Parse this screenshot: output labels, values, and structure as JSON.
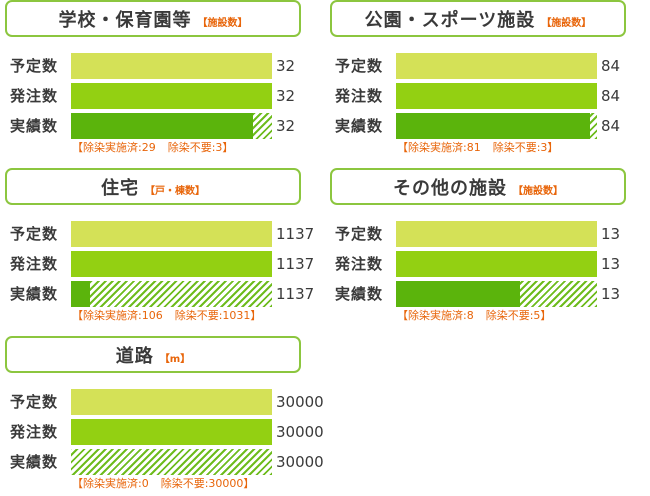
{
  "row_labels": [
    "予定数",
    "発注数",
    "実績数"
  ],
  "colors": {
    "plan": "#d4e157",
    "order": "#93d012",
    "done": "#5bb40c",
    "hatch": "#6ebc1e",
    "frame": "#8cc63f",
    "note": "#e8650a"
  },
  "note_open": "【",
  "note_close": "】",
  "note_label_done": "除染実施済:",
  "note_label_unneeded": "除染不要:",
  "chart_data": [
    {
      "type": "bar",
      "title": "学校・保育園等",
      "unit": "【施設数】",
      "categories": [
        "予定数",
        "発注数",
        "実績数"
      ],
      "values": [
        32,
        32,
        32
      ],
      "breakdown": {
        "done": 29,
        "unneeded": 3
      },
      "value_labels": [
        "32",
        "32",
        "32"
      ]
    },
    {
      "type": "bar",
      "title": "公園・スポーツ施設",
      "unit": "【施設数】",
      "categories": [
        "予定数",
        "発注数",
        "実績数"
      ],
      "values": [
        84,
        84,
        84
      ],
      "breakdown": {
        "done": 81,
        "unneeded": 3
      },
      "value_labels": [
        "84",
        "84",
        "84"
      ]
    },
    {
      "type": "bar",
      "title": "住宅",
      "unit": "【戸・棟数】",
      "categories": [
        "予定数",
        "発注数",
        "実績数"
      ],
      "values": [
        1137,
        1137,
        1137
      ],
      "breakdown": {
        "done": 106,
        "unneeded": 1031
      },
      "value_labels": [
        "1137",
        "1137",
        "1137"
      ]
    },
    {
      "type": "bar",
      "title": "その他の施設",
      "unit": "【施設数】",
      "categories": [
        "予定数",
        "発注数",
        "実績数"
      ],
      "values": [
        13,
        13,
        13
      ],
      "breakdown": {
        "done": 8,
        "unneeded": 5
      },
      "value_labels": [
        "13",
        "13",
        "13"
      ]
    },
    {
      "type": "bar",
      "title": "道路",
      "unit": "【m】",
      "categories": [
        "予定数",
        "発注数",
        "実績数"
      ],
      "values": [
        30000,
        30000,
        30000
      ],
      "breakdown": {
        "done": 0,
        "unneeded": 30000
      },
      "value_labels": [
        "30000",
        "30000",
        "30000"
      ]
    }
  ]
}
